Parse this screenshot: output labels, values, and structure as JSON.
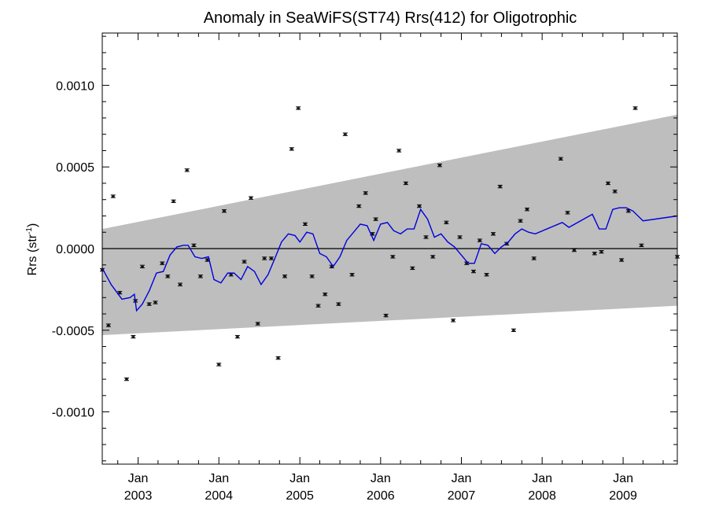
{
  "chart_data": {
    "type": "scatter",
    "title": "Anomaly in SeaWiFS(ST74) Rrs(412) for Oligotrophic",
    "ylabel": "Rrs (str",
    "ylabel_sup": "-1",
    "ylabel_close": ")",
    "xlim": [
      "2002-07-23",
      "2009-09-03"
    ],
    "ylim": [
      -0.00132,
      0.00132
    ],
    "y_ticks": [
      {
        "value": 0.001,
        "label": "0.0010"
      },
      {
        "value": 0.0005,
        "label": "0.0005"
      },
      {
        "value": 0.0,
        "label": "0.0000"
      },
      {
        "value": -0.0005,
        "label": "-0.0005"
      },
      {
        "value": -0.001,
        "label": "-0.0010"
      }
    ],
    "x_ticks": [
      {
        "date": "2003-01-01",
        "month": "Jan",
        "year": "2003"
      },
      {
        "date": "2004-01-01",
        "month": "Jan",
        "year": "2004"
      },
      {
        "date": "2005-01-01",
        "month": "Jan",
        "year": "2005"
      },
      {
        "date": "2006-01-01",
        "month": "Jan",
        "year": "2006"
      },
      {
        "date": "2007-01-01",
        "month": "Jan",
        "year": "2007"
      },
      {
        "date": "2008-01-01",
        "month": "Jan",
        "year": "2008"
      },
      {
        "date": "2009-01-01",
        "month": "Jan",
        "year": "2009"
      }
    ],
    "reference_line": 0.0,
    "band": {
      "color": "#bebebe",
      "start": {
        "date": "2002-07-23",
        "lower": -0.00053,
        "upper": 0.00012
      },
      "end": {
        "date": "2009-09-03",
        "lower": -0.00035,
        "upper": 0.00082
      }
    },
    "series": [
      {
        "style": "points",
        "color": "#000000",
        "error": 8e-06,
        "points": [
          [
            "2002-07-23",
            -0.00013
          ],
          [
            "2002-08-20",
            -0.00047
          ],
          [
            "2002-09-10",
            0.00032
          ],
          [
            "2002-10-10",
            -0.00027
          ],
          [
            "2002-11-10",
            -0.0008
          ],
          [
            "2002-12-10",
            -0.00054
          ],
          [
            "2002-12-20",
            -0.00032
          ],
          [
            "2003-01-20",
            -0.00011
          ],
          [
            "2003-02-20",
            -0.00034
          ],
          [
            "2003-03-20",
            -0.00033
          ],
          [
            "2003-04-20",
            -9e-05
          ],
          [
            "2003-05-15",
            -0.00017
          ],
          [
            "2003-06-10",
            0.00029
          ],
          [
            "2003-07-10",
            -0.00022
          ],
          [
            "2003-08-10",
            0.00048
          ],
          [
            "2003-09-10",
            2e-05
          ],
          [
            "2003-10-10",
            -0.00017
          ],
          [
            "2003-11-10",
            -7e-05
          ],
          [
            "2004-01-01",
            -0.00071
          ],
          [
            "2004-01-25",
            0.00023
          ],
          [
            "2004-02-25",
            -0.00016
          ],
          [
            "2004-03-25",
            -0.00054
          ],
          [
            "2004-04-25",
            -8e-05
          ],
          [
            "2004-05-25",
            0.00031
          ],
          [
            "2004-06-25",
            -0.00046
          ],
          [
            "2004-07-25",
            -6e-05
          ],
          [
            "2004-08-25",
            -6e-05
          ],
          [
            "2004-09-25",
            -0.00067
          ],
          [
            "2004-10-25",
            -0.00017
          ],
          [
            "2004-11-25",
            0.00061
          ],
          [
            "2004-12-25",
            0.00086
          ],
          [
            "2005-01-25",
            0.00015
          ],
          [
            "2005-02-25",
            -0.00017
          ],
          [
            "2005-03-25",
            -0.00035
          ],
          [
            "2005-04-25",
            -0.00028
          ],
          [
            "2005-05-25",
            -0.00011
          ],
          [
            "2005-06-25",
            -0.00034
          ],
          [
            "2005-07-25",
            0.0007
          ],
          [
            "2005-08-25",
            -0.00016
          ],
          [
            "2005-09-25",
            0.00026
          ],
          [
            "2005-10-25",
            0.00034
          ],
          [
            "2005-11-25",
            9e-05
          ],
          [
            "2005-12-10",
            0.00018
          ],
          [
            "2006-01-25",
            -0.00041
          ],
          [
            "2006-02-25",
            -5e-05
          ],
          [
            "2006-03-25",
            0.0006
          ],
          [
            "2006-04-25",
            0.0004
          ],
          [
            "2006-05-25",
            -0.00012
          ],
          [
            "2006-06-25",
            0.00026
          ],
          [
            "2006-07-25",
            7e-05
          ],
          [
            "2006-08-25",
            -5e-05
          ],
          [
            "2006-09-25",
            0.00051
          ],
          [
            "2006-10-25",
            0.00016
          ],
          [
            "2006-11-25",
            -0.00044
          ],
          [
            "2006-12-25",
            7e-05
          ],
          [
            "2007-01-25",
            -9e-05
          ],
          [
            "2007-02-25",
            -0.00014
          ],
          [
            "2007-03-25",
            5e-05
          ],
          [
            "2007-04-25",
            -0.00016
          ],
          [
            "2007-05-25",
            9e-05
          ],
          [
            "2007-06-25",
            0.00038
          ],
          [
            "2007-07-25",
            3e-05
          ],
          [
            "2007-08-25",
            -0.0005
          ],
          [
            "2007-09-25",
            0.00017
          ],
          [
            "2007-10-25",
            0.00024
          ],
          [
            "2007-11-25",
            -6e-05
          ],
          [
            "2008-03-25",
            0.00055
          ],
          [
            "2008-04-25",
            0.00022
          ],
          [
            "2008-05-25",
            -1e-05
          ],
          [
            "2008-08-25",
            -3e-05
          ],
          [
            "2008-09-25",
            -2e-05
          ],
          [
            "2008-10-25",
            0.0004
          ],
          [
            "2008-11-25",
            0.00035
          ],
          [
            "2008-12-25",
            -7e-05
          ],
          [
            "2009-01-25",
            0.00023
          ],
          [
            "2009-02-25",
            0.00086
          ],
          [
            "2009-03-25",
            2e-05
          ],
          [
            "2009-09-03",
            -5e-05
          ]
        ]
      },
      {
        "style": "line",
        "color": "#0000dd",
        "points": [
          [
            "2002-07-23",
            -0.00012
          ],
          [
            "2002-09-01",
            -0.00022
          ],
          [
            "2002-10-20",
            -0.00031
          ],
          [
            "2002-11-25",
            -0.0003
          ],
          [
            "2002-12-15",
            -0.00028
          ],
          [
            "2002-12-25",
            -0.00038
          ],
          [
            "2003-01-20",
            -0.00034
          ],
          [
            "2003-02-20",
            -0.00026
          ],
          [
            "2003-03-25",
            -0.00015
          ],
          [
            "2003-04-25",
            -0.00014
          ],
          [
            "2003-05-25",
            -4e-05
          ],
          [
            "2003-06-25",
            1e-05
          ],
          [
            "2003-07-25",
            2e-05
          ],
          [
            "2003-08-15",
            2e-05
          ],
          [
            "2003-09-15",
            -5e-05
          ],
          [
            "2003-10-15",
            -6e-05
          ],
          [
            "2003-11-15",
            -5e-05
          ],
          [
            "2003-12-10",
            -0.00019
          ],
          [
            "2004-01-10",
            -0.00021
          ],
          [
            "2004-02-10",
            -0.00015
          ],
          [
            "2004-03-10",
            -0.00015
          ],
          [
            "2004-04-10",
            -0.00019
          ],
          [
            "2004-05-10",
            -0.00011
          ],
          [
            "2004-06-10",
            -0.00014
          ],
          [
            "2004-07-10",
            -0.00022
          ],
          [
            "2004-08-10",
            -0.00016
          ],
          [
            "2004-09-10",
            -6e-05
          ],
          [
            "2004-10-10",
            4e-05
          ],
          [
            "2004-11-10",
            9e-05
          ],
          [
            "2004-12-10",
            8e-05
          ],
          [
            "2005-01-01",
            4e-05
          ],
          [
            "2005-02-01",
            0.0001
          ],
          [
            "2005-03-01",
            9e-05
          ],
          [
            "2005-04-01",
            -3e-05
          ],
          [
            "2005-05-01",
            -5e-05
          ],
          [
            "2005-06-01",
            -0.00011
          ],
          [
            "2005-07-01",
            -5e-05
          ],
          [
            "2005-08-01",
            5e-05
          ],
          [
            "2005-09-01",
            0.0001
          ],
          [
            "2005-10-01",
            0.00015
          ],
          [
            "2005-11-01",
            0.00014
          ],
          [
            "2005-12-01",
            5e-05
          ],
          [
            "2006-01-01",
            0.00015
          ],
          [
            "2006-02-01",
            0.00016
          ],
          [
            "2006-03-01",
            0.00011
          ],
          [
            "2006-04-01",
            9e-05
          ],
          [
            "2006-05-01",
            0.00012
          ],
          [
            "2006-06-01",
            0.00012
          ],
          [
            "2006-07-01",
            0.00024
          ],
          [
            "2006-08-01",
            0.00018
          ],
          [
            "2006-09-01",
            7e-05
          ],
          [
            "2006-10-01",
            9e-05
          ],
          [
            "2006-11-01",
            4e-05
          ],
          [
            "2006-12-01",
            1e-05
          ],
          [
            "2007-01-01",
            -4e-05
          ],
          [
            "2007-02-01",
            -9e-05
          ],
          [
            "2007-03-01",
            -9e-05
          ],
          [
            "2007-04-01",
            3e-05
          ],
          [
            "2007-05-01",
            2e-05
          ],
          [
            "2007-06-01",
            -3e-05
          ],
          [
            "2007-07-01",
            1e-05
          ],
          [
            "2007-08-01",
            4e-05
          ],
          [
            "2007-09-01",
            9e-05
          ],
          [
            "2007-10-01",
            0.00012
          ],
          [
            "2007-11-01",
            0.0001
          ],
          [
            "2007-12-01",
            9e-05
          ],
          [
            "2008-04-01",
            0.00016
          ],
          [
            "2008-05-01",
            0.00013
          ],
          [
            "2008-08-15",
            0.00021
          ],
          [
            "2008-09-15",
            0.00012
          ],
          [
            "2008-10-15",
            0.00012
          ],
          [
            "2008-11-15",
            0.00024
          ],
          [
            "2008-12-15",
            0.00025
          ],
          [
            "2009-01-15",
            0.00025
          ],
          [
            "2009-02-15",
            0.00023
          ],
          [
            "2009-04-01",
            0.00017
          ],
          [
            "2009-09-03",
            0.0002
          ]
        ]
      }
    ]
  }
}
